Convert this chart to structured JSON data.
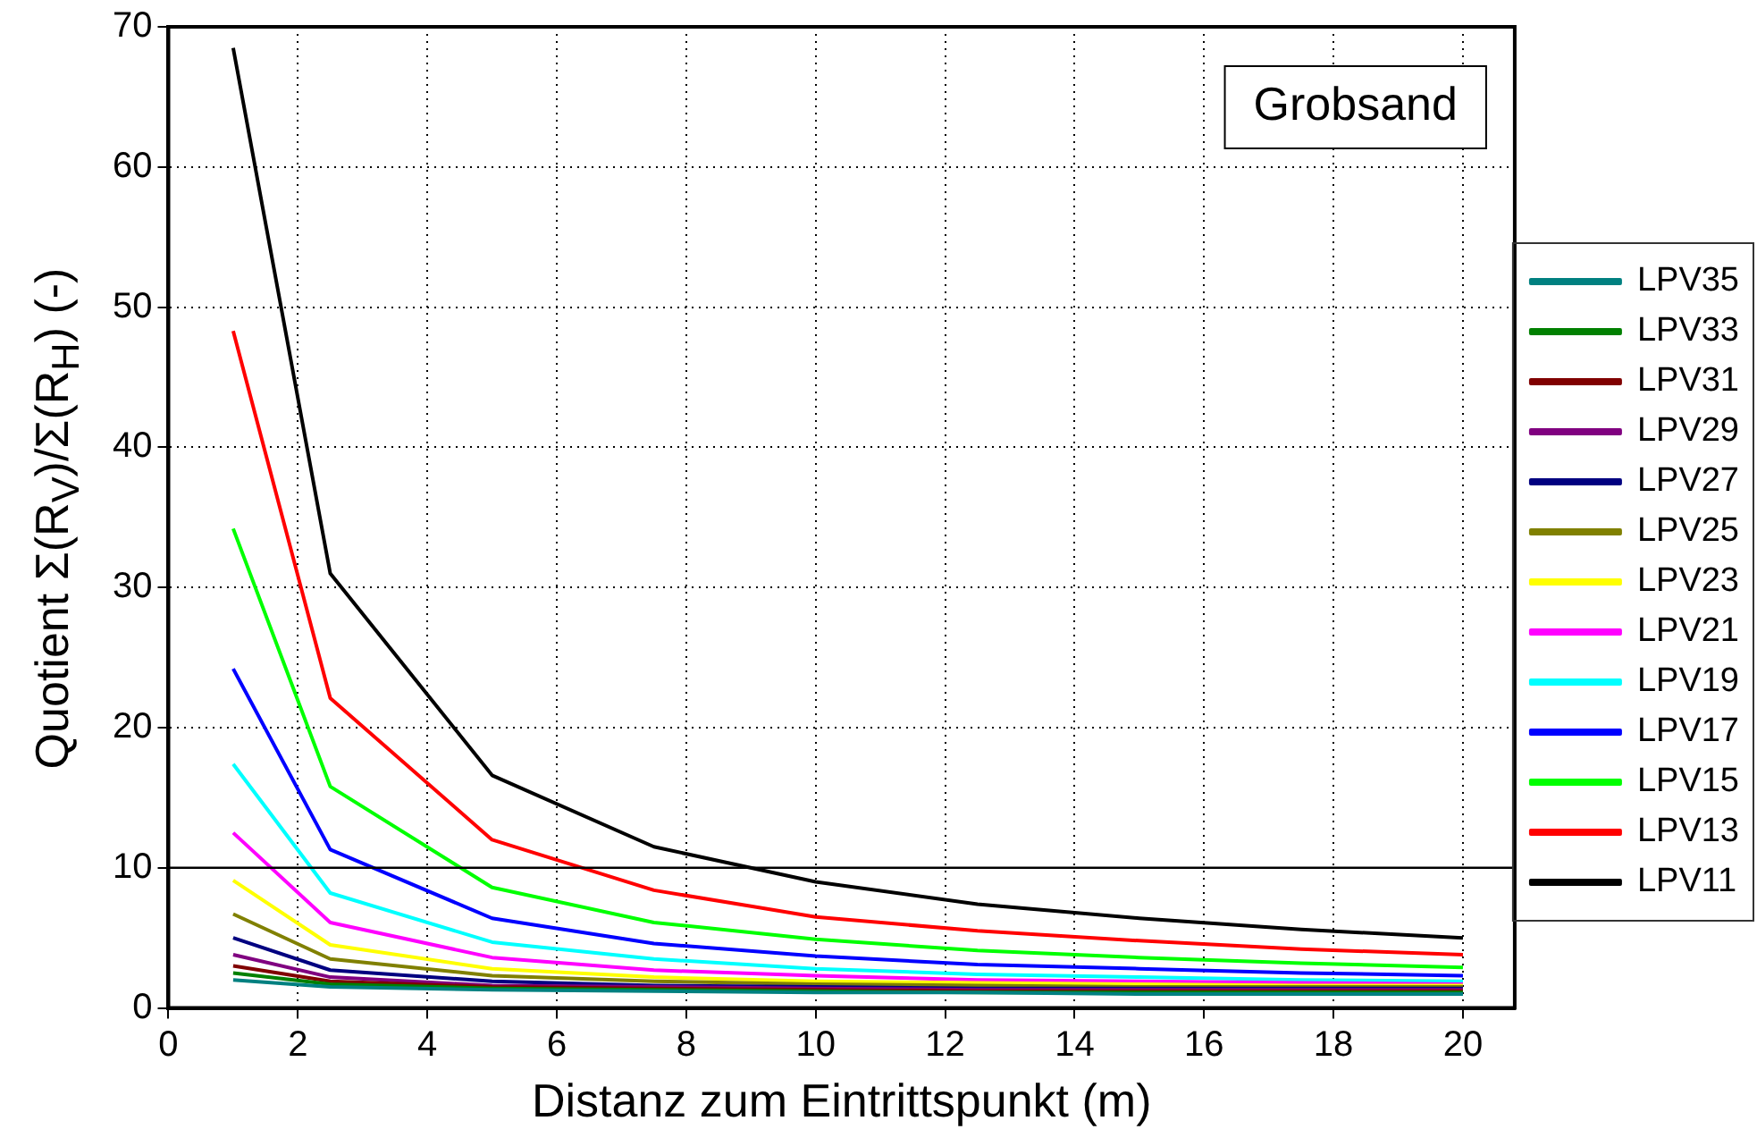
{
  "chart_data": {
    "type": "line",
    "xlabel": "Distanz zum Eintrittspunkt (m)",
    "ylabel": "Quotient Σ(R$_{V}$)/Σ(R$_{H}$) (-)",
    "x": [
      1,
      2.5,
      5,
      7.5,
      10,
      12.5,
      15,
      17.5,
      20
    ],
    "xlim": [
      0,
      20.8
    ],
    "xticks": [
      0,
      2,
      4,
      6,
      8,
      10,
      12,
      14,
      16,
      18,
      20
    ],
    "ylim": [
      0,
      70
    ],
    "yticks": [
      0,
      10,
      20,
      30,
      40,
      50,
      60,
      70
    ],
    "grid": true,
    "legend": "right",
    "marker": "none",
    "line_style": "solid",
    "annotations": [
      "Grobsand"
    ],
    "ref_lines": [
      {
        "axis": "y",
        "value": 10,
        "color": "#000000",
        "line_style": "solid"
      }
    ],
    "series": [
      {
        "name": "LPV35",
        "color": "#008080",
        "values": [
          2.0,
          1.5,
          1.3,
          1.2,
          1.1,
          1.1,
          1.0,
          1.0,
          1.0
        ]
      },
      {
        "name": "LPV33",
        "color": "#008000",
        "values": [
          2.5,
          1.7,
          1.4,
          1.3,
          1.2,
          1.1,
          1.1,
          1.1,
          1.1
        ]
      },
      {
        "name": "LPV31",
        "color": "#800000",
        "values": [
          3.0,
          1.9,
          1.5,
          1.4,
          1.3,
          1.2,
          1.2,
          1.2,
          1.2
        ]
      },
      {
        "name": "LPV29",
        "color": "#800080",
        "values": [
          3.8,
          2.2,
          1.6,
          1.5,
          1.4,
          1.3,
          1.3,
          1.3,
          1.3
        ]
      },
      {
        "name": "LPV27",
        "color": "#000080",
        "values": [
          5.0,
          2.7,
          1.9,
          1.6,
          1.5,
          1.4,
          1.4,
          1.4,
          1.4
        ]
      },
      {
        "name": "LPV25",
        "color": "#808000",
        "values": [
          6.7,
          3.5,
          2.3,
          1.9,
          1.7,
          1.6,
          1.5,
          1.5,
          1.5
        ]
      },
      {
        "name": "LPV23",
        "color": "#ffff00",
        "values": [
          9.1,
          4.5,
          2.8,
          2.2,
          1.9,
          1.8,
          1.7,
          1.6,
          1.6
        ]
      },
      {
        "name": "LPV21",
        "color": "#ff00ff",
        "values": [
          12.5,
          6.1,
          3.6,
          2.7,
          2.3,
          2.0,
          1.9,
          1.8,
          1.7
        ]
      },
      {
        "name": "LPV19",
        "color": "#00ffff",
        "values": [
          17.4,
          8.2,
          4.7,
          3.5,
          2.8,
          2.4,
          2.2,
          2.0,
          1.9
        ]
      },
      {
        "name": "LPV17",
        "color": "#0000ff",
        "values": [
          24.2,
          11.3,
          6.4,
          4.6,
          3.7,
          3.1,
          2.8,
          2.5,
          2.3
        ]
      },
      {
        "name": "LPV15",
        "color": "#00ff00",
        "values": [
          34.2,
          15.8,
          8.6,
          6.1,
          4.9,
          4.1,
          3.6,
          3.2,
          2.9
        ]
      },
      {
        "name": "LPV13",
        "color": "#ff0000",
        "values": [
          48.3,
          22.1,
          12.0,
          8.4,
          6.5,
          5.5,
          4.8,
          4.2,
          3.8
        ]
      },
      {
        "name": "LPV11",
        "color": "#000000",
        "values": [
          68.5,
          31.0,
          16.6,
          11.5,
          9.0,
          7.4,
          6.4,
          5.6,
          5.0
        ]
      }
    ]
  }
}
